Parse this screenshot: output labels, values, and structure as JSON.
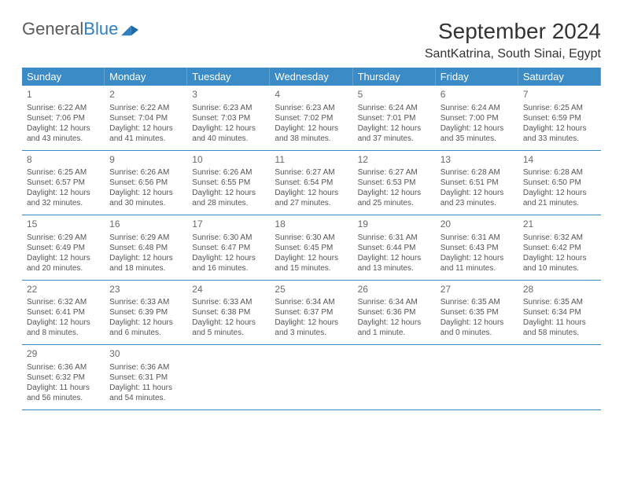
{
  "logo": {
    "text1": "General",
    "text2": "Blue"
  },
  "title": "September 2024",
  "location": "SantKatrina, South Sinai, Egypt",
  "colors": {
    "header_bg": "#3b8bc6",
    "header_fg": "#ffffff",
    "text": "#555555",
    "border": "#3b8bc6",
    "logo_gray": "#5a5a5a",
    "logo_blue": "#2f80c2"
  },
  "dayNames": [
    "Sunday",
    "Monday",
    "Tuesday",
    "Wednesday",
    "Thursday",
    "Friday",
    "Saturday"
  ],
  "weeks": [
    [
      {
        "n": "1",
        "sr": "Sunrise: 6:22 AM",
        "ss": "Sunset: 7:06 PM",
        "dl1": "Daylight: 12 hours",
        "dl2": "and 43 minutes."
      },
      {
        "n": "2",
        "sr": "Sunrise: 6:22 AM",
        "ss": "Sunset: 7:04 PM",
        "dl1": "Daylight: 12 hours",
        "dl2": "and 41 minutes."
      },
      {
        "n": "3",
        "sr": "Sunrise: 6:23 AM",
        "ss": "Sunset: 7:03 PM",
        "dl1": "Daylight: 12 hours",
        "dl2": "and 40 minutes."
      },
      {
        "n": "4",
        "sr": "Sunrise: 6:23 AM",
        "ss": "Sunset: 7:02 PM",
        "dl1": "Daylight: 12 hours",
        "dl2": "and 38 minutes."
      },
      {
        "n": "5",
        "sr": "Sunrise: 6:24 AM",
        "ss": "Sunset: 7:01 PM",
        "dl1": "Daylight: 12 hours",
        "dl2": "and 37 minutes."
      },
      {
        "n": "6",
        "sr": "Sunrise: 6:24 AM",
        "ss": "Sunset: 7:00 PM",
        "dl1": "Daylight: 12 hours",
        "dl2": "and 35 minutes."
      },
      {
        "n": "7",
        "sr": "Sunrise: 6:25 AM",
        "ss": "Sunset: 6:59 PM",
        "dl1": "Daylight: 12 hours",
        "dl2": "and 33 minutes."
      }
    ],
    [
      {
        "n": "8",
        "sr": "Sunrise: 6:25 AM",
        "ss": "Sunset: 6:57 PM",
        "dl1": "Daylight: 12 hours",
        "dl2": "and 32 minutes."
      },
      {
        "n": "9",
        "sr": "Sunrise: 6:26 AM",
        "ss": "Sunset: 6:56 PM",
        "dl1": "Daylight: 12 hours",
        "dl2": "and 30 minutes."
      },
      {
        "n": "10",
        "sr": "Sunrise: 6:26 AM",
        "ss": "Sunset: 6:55 PM",
        "dl1": "Daylight: 12 hours",
        "dl2": "and 28 minutes."
      },
      {
        "n": "11",
        "sr": "Sunrise: 6:27 AM",
        "ss": "Sunset: 6:54 PM",
        "dl1": "Daylight: 12 hours",
        "dl2": "and 27 minutes."
      },
      {
        "n": "12",
        "sr": "Sunrise: 6:27 AM",
        "ss": "Sunset: 6:53 PM",
        "dl1": "Daylight: 12 hours",
        "dl2": "and 25 minutes."
      },
      {
        "n": "13",
        "sr": "Sunrise: 6:28 AM",
        "ss": "Sunset: 6:51 PM",
        "dl1": "Daylight: 12 hours",
        "dl2": "and 23 minutes."
      },
      {
        "n": "14",
        "sr": "Sunrise: 6:28 AM",
        "ss": "Sunset: 6:50 PM",
        "dl1": "Daylight: 12 hours",
        "dl2": "and 21 minutes."
      }
    ],
    [
      {
        "n": "15",
        "sr": "Sunrise: 6:29 AM",
        "ss": "Sunset: 6:49 PM",
        "dl1": "Daylight: 12 hours",
        "dl2": "and 20 minutes."
      },
      {
        "n": "16",
        "sr": "Sunrise: 6:29 AM",
        "ss": "Sunset: 6:48 PM",
        "dl1": "Daylight: 12 hours",
        "dl2": "and 18 minutes."
      },
      {
        "n": "17",
        "sr": "Sunrise: 6:30 AM",
        "ss": "Sunset: 6:47 PM",
        "dl1": "Daylight: 12 hours",
        "dl2": "and 16 minutes."
      },
      {
        "n": "18",
        "sr": "Sunrise: 6:30 AM",
        "ss": "Sunset: 6:45 PM",
        "dl1": "Daylight: 12 hours",
        "dl2": "and 15 minutes."
      },
      {
        "n": "19",
        "sr": "Sunrise: 6:31 AM",
        "ss": "Sunset: 6:44 PM",
        "dl1": "Daylight: 12 hours",
        "dl2": "and 13 minutes."
      },
      {
        "n": "20",
        "sr": "Sunrise: 6:31 AM",
        "ss": "Sunset: 6:43 PM",
        "dl1": "Daylight: 12 hours",
        "dl2": "and 11 minutes."
      },
      {
        "n": "21",
        "sr": "Sunrise: 6:32 AM",
        "ss": "Sunset: 6:42 PM",
        "dl1": "Daylight: 12 hours",
        "dl2": "and 10 minutes."
      }
    ],
    [
      {
        "n": "22",
        "sr": "Sunrise: 6:32 AM",
        "ss": "Sunset: 6:41 PM",
        "dl1": "Daylight: 12 hours",
        "dl2": "and 8 minutes."
      },
      {
        "n": "23",
        "sr": "Sunrise: 6:33 AM",
        "ss": "Sunset: 6:39 PM",
        "dl1": "Daylight: 12 hours",
        "dl2": "and 6 minutes."
      },
      {
        "n": "24",
        "sr": "Sunrise: 6:33 AM",
        "ss": "Sunset: 6:38 PM",
        "dl1": "Daylight: 12 hours",
        "dl2": "and 5 minutes."
      },
      {
        "n": "25",
        "sr": "Sunrise: 6:34 AM",
        "ss": "Sunset: 6:37 PM",
        "dl1": "Daylight: 12 hours",
        "dl2": "and 3 minutes."
      },
      {
        "n": "26",
        "sr": "Sunrise: 6:34 AM",
        "ss": "Sunset: 6:36 PM",
        "dl1": "Daylight: 12 hours",
        "dl2": "and 1 minute."
      },
      {
        "n": "27",
        "sr": "Sunrise: 6:35 AM",
        "ss": "Sunset: 6:35 PM",
        "dl1": "Daylight: 12 hours",
        "dl2": "and 0 minutes."
      },
      {
        "n": "28",
        "sr": "Sunrise: 6:35 AM",
        "ss": "Sunset: 6:34 PM",
        "dl1": "Daylight: 11 hours",
        "dl2": "and 58 minutes."
      }
    ],
    [
      {
        "n": "29",
        "sr": "Sunrise: 6:36 AM",
        "ss": "Sunset: 6:32 PM",
        "dl1": "Daylight: 11 hours",
        "dl2": "and 56 minutes."
      },
      {
        "n": "30",
        "sr": "Sunrise: 6:36 AM",
        "ss": "Sunset: 6:31 PM",
        "dl1": "Daylight: 11 hours",
        "dl2": "and 54 minutes."
      },
      null,
      null,
      null,
      null,
      null
    ]
  ]
}
